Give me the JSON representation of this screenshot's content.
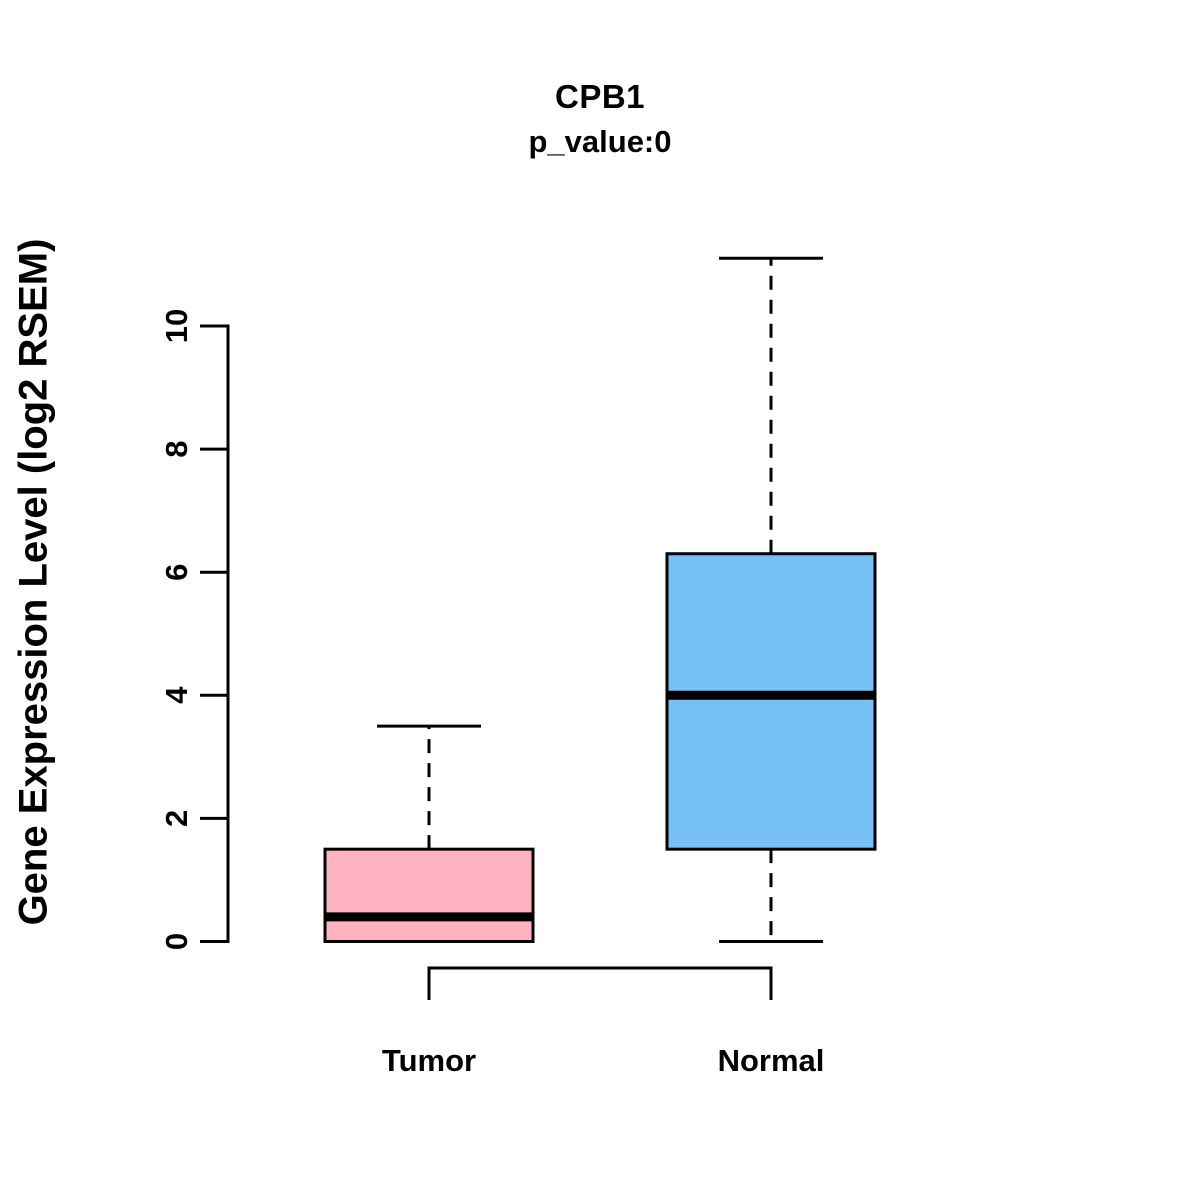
{
  "title": "CPB1",
  "subtitle": "p_value:0",
  "ylabel": "Gene Expression Level (log2 RSEM)",
  "colors": {
    "tumor_fill": "#FFB3C1",
    "normal_fill": "#76C0F6",
    "line": "#000000",
    "background": "#FFFFFF"
  },
  "chart_data": {
    "type": "boxplot",
    "title": "CPB1",
    "subtitle": "p_value:0",
    "ylabel": "Gene Expression Level (log2 RSEM)",
    "xlabel": "",
    "categories": [
      "Tumor",
      "Normal"
    ],
    "yticks": [
      0,
      2,
      4,
      6,
      8,
      10
    ],
    "ylim": [
      0,
      11.2
    ],
    "grid": false,
    "legend": "none",
    "series": [
      {
        "name": "Tumor",
        "min": 0,
        "q1": 0,
        "median": 0.4,
        "q3": 1.5,
        "max": 3.5,
        "fill": "#FFB3C1"
      },
      {
        "name": "Normal",
        "min": 0,
        "q1": 1.5,
        "median": 4.0,
        "q3": 6.3,
        "max": 11.1,
        "fill": "#76C0F6"
      }
    ],
    "annotation_bracket": {
      "connects": [
        "Tumor",
        "Normal"
      ],
      "style": "x-axis-bracket"
    }
  }
}
